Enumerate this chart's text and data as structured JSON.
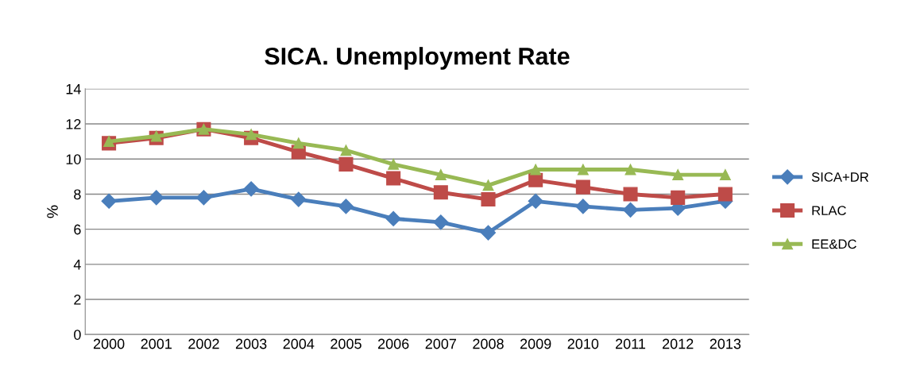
{
  "chart_data": {
    "type": "line",
    "title": "SICA. Unemployment Rate",
    "ylabel": "%",
    "categories": [
      "2000",
      "2001",
      "2002",
      "2003",
      "2004",
      "2005",
      "2006",
      "2007",
      "2008",
      "2009",
      "2010",
      "2011",
      "2012",
      "2013"
    ],
    "series": [
      {
        "name": "SICA+DR",
        "color": "#4a7ebb",
        "marker": "diamond",
        "values": [
          7.6,
          7.8,
          7.8,
          8.3,
          7.7,
          7.3,
          6.6,
          6.4,
          5.8,
          7.6,
          7.3,
          7.1,
          7.2,
          7.6
        ]
      },
      {
        "name": "RLAC",
        "color": "#be4b48",
        "marker": "square",
        "values": [
          10.9,
          11.2,
          11.7,
          11.2,
          10.4,
          9.7,
          8.9,
          8.1,
          7.7,
          8.8,
          8.4,
          8.0,
          7.8,
          8.0
        ]
      },
      {
        "name": "EE&DC",
        "color": "#98b954",
        "marker": "triangle",
        "values": [
          11.0,
          11.3,
          11.7,
          11.4,
          10.9,
          10.5,
          9.7,
          9.1,
          8.5,
          9.4,
          9.4,
          9.4,
          9.1,
          9.1
        ]
      }
    ],
    "ylim": [
      0,
      14
    ],
    "yticks": [
      0,
      2,
      4,
      6,
      8,
      10,
      12,
      14
    ],
    "grid": "y",
    "legend": "right"
  }
}
